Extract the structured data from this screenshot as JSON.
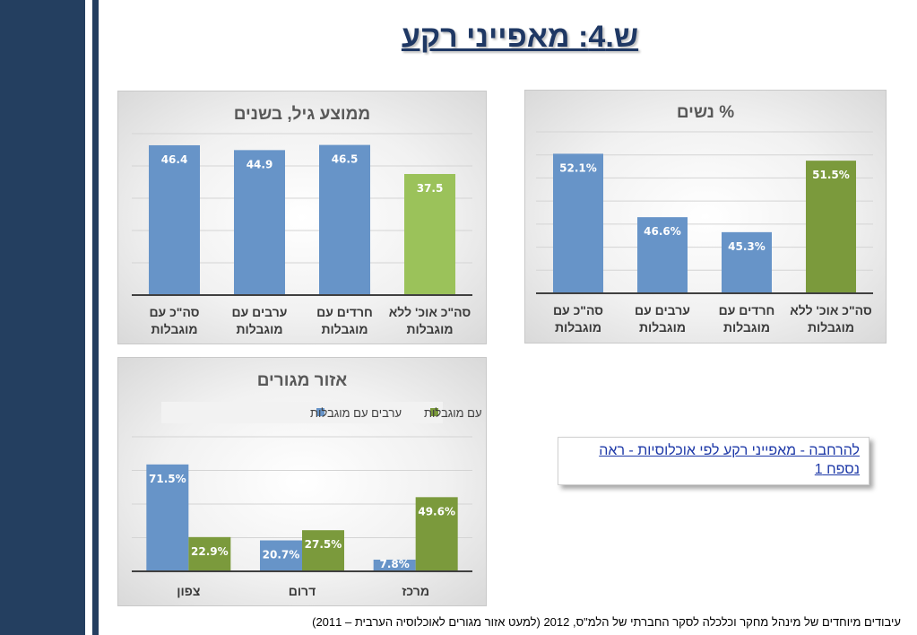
{
  "page": {
    "title": "ש.4: מאפייני רקע",
    "link_text": "להרחבה - מאפייני רקע לפי אוכלוסיות - ראה נספח 1",
    "footnote": "עיבודים מיוחדים של מינהל מחקר וכלכלה  לסקר החברתי של הלמ\"ס,  2012 (למעט אזור מגורים לאוכלוסיה הערבית – 2011)"
  },
  "colors": {
    "blue": "#6794c8",
    "green": "#7b9a3c",
    "light_green": "#9bc25a",
    "title_text": "#1f3864",
    "sidebar": "#243f60"
  },
  "chart_data": [
    {
      "id": "age",
      "type": "bar",
      "title": "ממוצע גיל, בשנים",
      "categories": [
        "סה\"כ עם מוגבלות",
        "ערבים עם מוגבלות",
        "חרדים עם מוגבלות",
        "סה\"כ אוכ' ללא מוגבלות"
      ],
      "values": [
        46.4,
        44.9,
        46.5,
        37.5
      ],
      "labels": [
        "46.4",
        "44.9",
        "46.5",
        "37.5"
      ],
      "bar_colors": [
        "#6794c8",
        "#6794c8",
        "#6794c8",
        "#9bc25a"
      ],
      "ylim": [
        0,
        50
      ],
      "grid": true
    },
    {
      "id": "women",
      "type": "bar",
      "title": "% נשים",
      "categories": [
        "סה\"כ עם מוגבלות",
        "ערבים עם מוגבלות",
        "חרדים עם מוגבלות",
        "סה\"כ אוכ' ללא מוגבלות"
      ],
      "values": [
        52.1,
        46.6,
        45.3,
        51.5
      ],
      "labels": [
        "52.1%",
        "46.6%",
        "45.3%",
        "51.5%"
      ],
      "bar_colors": [
        "#6794c8",
        "#6794c8",
        "#6794c8",
        "#7b9a3c"
      ],
      "ylim": [
        40,
        54
      ],
      "grid": true
    },
    {
      "id": "region",
      "type": "bar",
      "title": "אזור מגורים",
      "categories": [
        "צפון",
        "דרום",
        "מרכז"
      ],
      "series": [
        {
          "name": "ערבים עם מוגבלות",
          "color": "#6794c8",
          "values": [
            71.5,
            20.7,
            7.8
          ],
          "labels": [
            "71.5%",
            "20.7%",
            "7.8%"
          ]
        },
        {
          "name": "יהודים עם מוגבלות",
          "color": "#7b9a3c",
          "values": [
            22.9,
            27.5,
            49.6
          ],
          "labels": [
            "22.9%",
            "27.5%",
            "49.6%"
          ]
        }
      ],
      "ylim": [
        0,
        90
      ],
      "grid": true,
      "legend_position": "top"
    }
  ]
}
